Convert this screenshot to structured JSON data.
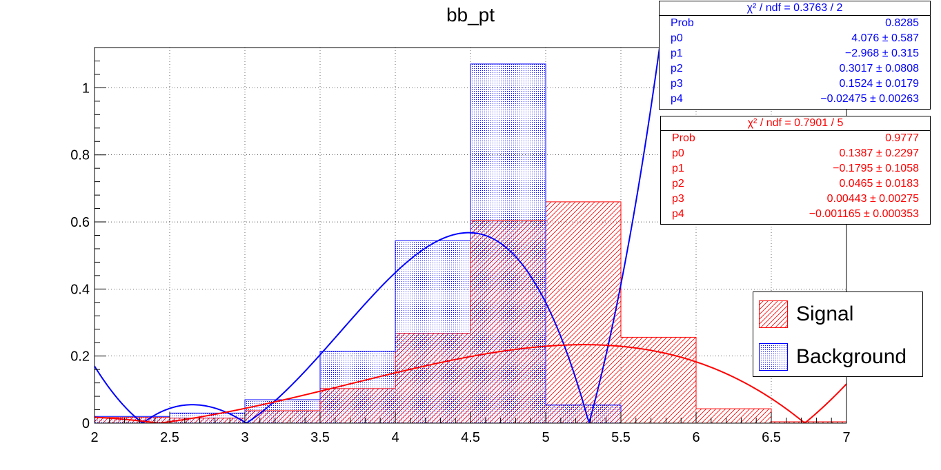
{
  "chart_data": {
    "type": "bar",
    "title": "bb_pt",
    "xlim": [
      2,
      7
    ],
    "ylim": [
      0,
      1.12
    ],
    "x_ticks": [
      "2",
      "2.5",
      "3",
      "3.5",
      "4",
      "4.5",
      "5",
      "5.5",
      "6",
      "6.5",
      "7"
    ],
    "y_ticks": [
      "0",
      "0.2",
      "0.4",
      "0.6",
      "0.8",
      "1"
    ],
    "grid": true,
    "bin_edges": [
      2,
      2.5,
      3,
      3.5,
      4,
      4.5,
      5,
      5.5,
      6,
      6.5,
      7
    ],
    "series": [
      {
        "name": "Signal",
        "color": "#ff0000",
        "fill": "hatch",
        "values": [
          0.017,
          0.015,
          0.037,
          0.103,
          0.268,
          0.604,
          0.66,
          0.256,
          0.043,
          0.004
        ]
      },
      {
        "name": "Background",
        "color": "#0000ff",
        "fill": "dots",
        "values": [
          0.02,
          0.03,
          0.07,
          0.214,
          0.544,
          1.071,
          0.054,
          0,
          0,
          0
        ]
      }
    ],
    "fits": [
      {
        "series": "Background",
        "color": "#0000ff",
        "params": [
          4.076,
          -2.968,
          0.3017,
          0.1524,
          -0.02475
        ]
      },
      {
        "series": "Signal",
        "color": "#ff0000",
        "params": [
          0.1387,
          -0.1795,
          0.0465,
          0.00443,
          -0.001165
        ]
      }
    ],
    "legend_position": "right"
  },
  "statboxes": {
    "background": {
      "header": "χ² / ndf = 0.3763 / 2",
      "rows": [
        {
          "label": "Prob",
          "value": "0.8285"
        },
        {
          "label": "p0",
          "value": "4.076 ± 0.587"
        },
        {
          "label": "p1",
          "value": "−2.968 ± 0.315"
        },
        {
          "label": "p2",
          "value": "0.3017 ± 0.0808"
        },
        {
          "label": "p3",
          "value": "0.1524 ± 0.0179"
        },
        {
          "label": "p4",
          "value": "−0.02475 ± 0.00263"
        }
      ]
    },
    "signal": {
      "header": "χ² / ndf = 0.7901 / 5",
      "rows": [
        {
          "label": "Prob",
          "value": "0.9777"
        },
        {
          "label": "p0",
          "value": "0.1387 ± 0.2297"
        },
        {
          "label": "p1",
          "value": "−0.1795 ± 0.1058"
        },
        {
          "label": "p2",
          "value": "0.0465 ± 0.0183"
        },
        {
          "label": "p3",
          "value": "0.00443 ± 0.00275"
        },
        {
          "label": "p4",
          "value": "−0.001165 ± 0.000353"
        }
      ]
    }
  },
  "legend": {
    "signal_label": "Signal",
    "background_label": "Background"
  }
}
